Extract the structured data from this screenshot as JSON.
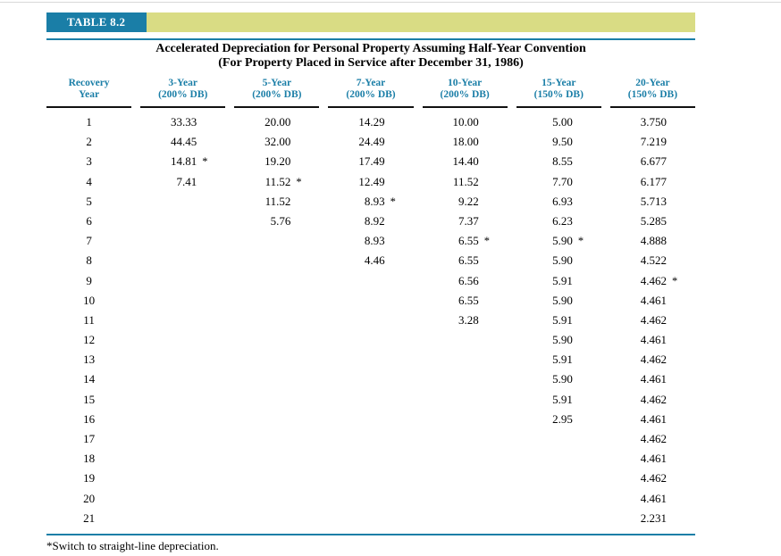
{
  "colors": {
    "teal": "#1a7ea7",
    "olive": "#d9dc84",
    "rule_dark": "#111111",
    "top_line": "#d8d8d8",
    "label_text": "#ffffff",
    "body_text": "#000000"
  },
  "table": {
    "label": "TABLE 8.2",
    "title_line1": "Accelerated Depreciation for Personal Property Assuming Half-Year Convention",
    "title_line2": "(For Property Placed in Service after December 31, 1986)",
    "footnote": "*Switch to straight-line depreciation.",
    "columns": [
      {
        "line1": "Recovery",
        "line2": "Year"
      },
      {
        "line1": "3-Year",
        "line2": "(200% DB)"
      },
      {
        "line1": "5-Year",
        "line2": "(200% DB)"
      },
      {
        "line1": "7-Year",
        "line2": "(200% DB)"
      },
      {
        "line1": "10-Year",
        "line2": "(200% DB)"
      },
      {
        "line1": "15-Year",
        "line2": "(150% DB)"
      },
      {
        "line1": "20-Year",
        "line2": "(150% DB)"
      }
    ],
    "rows": [
      {
        "year": "1",
        "values": [
          "33.33",
          "20.00",
          "14.29",
          "10.00",
          "5.00",
          "3.750"
        ]
      },
      {
        "year": "2",
        "values": [
          "44.45",
          "32.00",
          "24.49",
          "18.00",
          "9.50",
          "7.219"
        ]
      },
      {
        "year": "3",
        "values": [
          "14.81*",
          "19.20",
          "17.49",
          "14.40",
          "8.55",
          "6.677"
        ]
      },
      {
        "year": "4",
        "values": [
          "7.41",
          "11.52*",
          "12.49",
          "11.52",
          "7.70",
          "6.177"
        ]
      },
      {
        "year": "5",
        "values": [
          "",
          "11.52",
          "8.93*",
          "9.22",
          "6.93",
          "5.713"
        ]
      },
      {
        "year": "6",
        "values": [
          "",
          "5.76",
          "8.92",
          "7.37",
          "6.23",
          "5.285"
        ]
      },
      {
        "year": "7",
        "values": [
          "",
          "",
          "8.93",
          "6.55*",
          "5.90*",
          "4.888"
        ]
      },
      {
        "year": "8",
        "values": [
          "",
          "",
          "4.46",
          "6.55",
          "5.90",
          "4.522"
        ]
      },
      {
        "year": "9",
        "values": [
          "",
          "",
          "",
          "6.56",
          "5.91",
          "4.462*"
        ]
      },
      {
        "year": "10",
        "values": [
          "",
          "",
          "",
          "6.55",
          "5.90",
          "4.461"
        ]
      },
      {
        "year": "11",
        "values": [
          "",
          "",
          "",
          "3.28",
          "5.91",
          "4.462"
        ]
      },
      {
        "year": "12",
        "values": [
          "",
          "",
          "",
          "",
          "5.90",
          "4.461"
        ]
      },
      {
        "year": "13",
        "values": [
          "",
          "",
          "",
          "",
          "5.91",
          "4.462"
        ]
      },
      {
        "year": "14",
        "values": [
          "",
          "",
          "",
          "",
          "5.90",
          "4.461"
        ]
      },
      {
        "year": "15",
        "values": [
          "",
          "",
          "",
          "",
          "5.91",
          "4.462"
        ]
      },
      {
        "year": "16",
        "values": [
          "",
          "",
          "",
          "",
          "2.95",
          "4.461"
        ]
      },
      {
        "year": "17",
        "values": [
          "",
          "",
          "",
          "",
          "",
          "4.462"
        ]
      },
      {
        "year": "18",
        "values": [
          "",
          "",
          "",
          "",
          "",
          "4.461"
        ]
      },
      {
        "year": "19",
        "values": [
          "",
          "",
          "",
          "",
          "",
          "4.462"
        ]
      },
      {
        "year": "20",
        "values": [
          "",
          "",
          "",
          "",
          "",
          "4.461"
        ]
      },
      {
        "year": "21",
        "values": [
          "",
          "",
          "",
          "",
          "",
          "2.231"
        ]
      }
    ]
  }
}
